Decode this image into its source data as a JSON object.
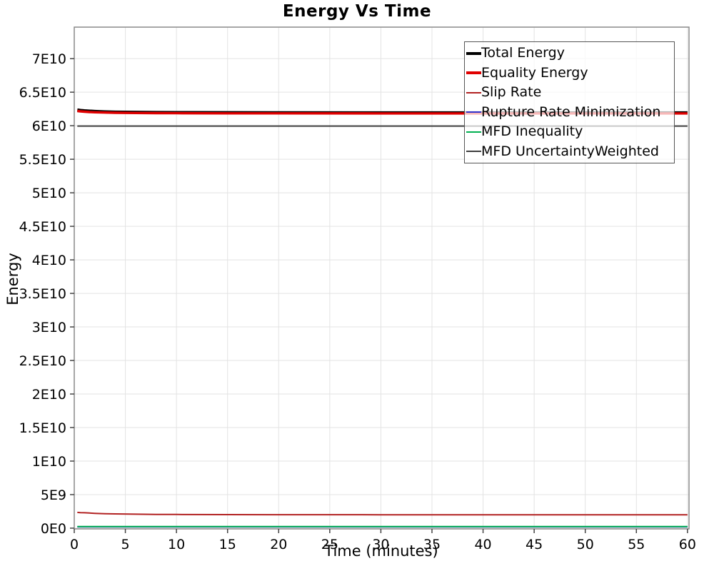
{
  "chart_data": {
    "type": "line",
    "title": "Energy Vs Time",
    "xlabel": "Time (minutes)",
    "ylabel": "Energy",
    "xlim": [
      0,
      60.15
    ],
    "ylim": [
      -110000000.0,
      74700000000.0
    ],
    "grid": true,
    "legend_position": "top-right",
    "xticks": {
      "values": [
        0,
        5,
        10,
        15,
        20,
        25,
        30,
        35,
        40,
        45,
        50,
        55,
        60
      ],
      "labels": [
        "0",
        "5",
        "10",
        "15",
        "20",
        "25",
        "30",
        "35",
        "40",
        "45",
        "50",
        "55",
        "60"
      ]
    },
    "yticks": {
      "values": [
        0,
        5000000000.0,
        10000000000.0,
        15000000000.0,
        20000000000.0,
        25000000000.0,
        30000000000.0,
        35000000000.0,
        40000000000.0,
        45000000000.0,
        50000000000.0,
        55000000000.0,
        60000000000.0,
        65000000000.0,
        70000000000.0
      ],
      "labels": [
        "0E0",
        "5E9",
        "1E10",
        "1.5E10",
        "2E10",
        "2.5E10",
        "3E10",
        "3.5E10",
        "4E10",
        "4.5E10",
        "5E10",
        "5.5E10",
        "6E10",
        "6.5E10",
        "7E10"
      ]
    },
    "x": [
      0.3,
      0.6,
      1,
      1.5,
      2,
      3,
      4,
      6,
      8,
      10,
      15,
      20,
      30,
      40,
      50,
      60
    ],
    "series": [
      {
        "name": "Total Energy",
        "color": "#000000",
        "width": 4.5,
        "y": [
          62350000000.0,
          62280000000.0,
          62220000000.0,
          62170000000.0,
          62130000000.0,
          62070000000.0,
          62030000000.0,
          61990000000.0,
          61970000000.0,
          61960000000.0,
          61940000000.0,
          61930000000.0,
          61920000000.0,
          61920000000.0,
          61920000000.0,
          61920000000.0
        ]
      },
      {
        "name": "Equality Energy",
        "color": "#e00000",
        "width": 3.4,
        "y": [
          62200000000.0,
          62140000000.0,
          62090000000.0,
          62040000000.0,
          62000000000.0,
          61960000000.0,
          61930000000.0,
          61900000000.0,
          61880000000.0,
          61870000000.0,
          61850000000.0,
          61840000000.0,
          61830000000.0,
          61830000000.0,
          61830000000.0,
          61830000000.0
        ]
      },
      {
        "name": "Slip Rate",
        "color": "#b22222",
        "width": 2,
        "y": [
          2350000000.0,
          2320000000.0,
          2290000000.0,
          2250000000.0,
          2210000000.0,
          2160000000.0,
          2120000000.0,
          2080000000.0,
          2050000000.0,
          2040000000.0,
          2020000000.0,
          2010000000.0,
          2000000000.0,
          2000000000.0,
          2000000000.0,
          2000000000.0
        ]
      },
      {
        "name": "Rupture Rate Minimization",
        "color": "#3333cc",
        "width": 2,
        "y": [
          200000000.0,
          200000000.0,
          200000000.0,
          200000000.0,
          200000000.0,
          200000000.0,
          200000000.0,
          200000000.0,
          200000000.0,
          200000000.0,
          200000000.0,
          200000000.0,
          200000000.0,
          200000000.0,
          200000000.0,
          200000000.0
        ]
      },
      {
        "name": "MFD Inequality",
        "color": "#00b050",
        "width": 2,
        "y": [
          240000000.0,
          240000000.0,
          240000000.0,
          240000000.0,
          240000000.0,
          240000000.0,
          240000000.0,
          240000000.0,
          240000000.0,
          240000000.0,
          240000000.0,
          240000000.0,
          240000000.0,
          240000000.0,
          240000000.0,
          240000000.0
        ]
      },
      {
        "name": "MFD UncertaintyWeighted",
        "color": "#3d3d3d",
        "width": 2,
        "y": [
          59950000000.0,
          59950000000.0,
          59950000000.0,
          59950000000.0,
          59950000000.0,
          59950000000.0,
          59950000000.0,
          59950000000.0,
          59950000000.0,
          59950000000.0,
          59950000000.0,
          59950000000.0,
          59950000000.0,
          59950000000.0,
          59950000000.0,
          59950000000.0
        ]
      }
    ],
    "colors": {
      "grid": "#e3e3e3",
      "plot_border": "#8a8a8a",
      "tick": "#444444",
      "text": "#000000",
      "legend_border": "#555555",
      "legend_background": "rgba(255,255,255,0.72)"
    }
  }
}
